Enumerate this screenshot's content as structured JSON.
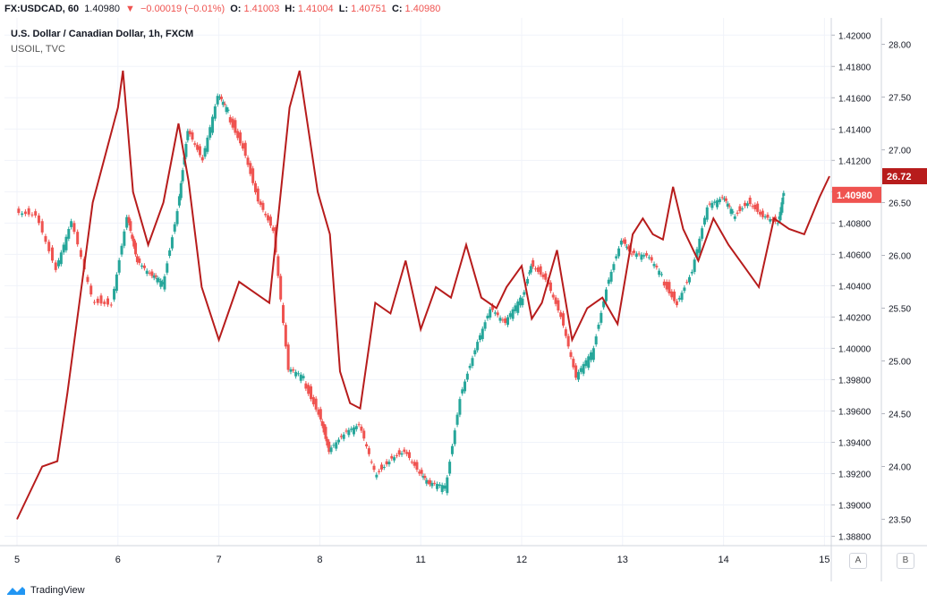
{
  "header": {
    "symbol": "FX:USDCAD, 60",
    "last": "1.40980",
    "change": "−0.00019 (−0.01%)",
    "open_label": "O:",
    "open_value": "1.41003",
    "high_label": "H:",
    "high_value": "1.41004",
    "low_label": "L:",
    "low_value": "1.40751",
    "close_label": "C:",
    "close_value": "1.40980",
    "down_arrow": "▼"
  },
  "legend": {
    "main_title": "U.S. Dollar / Canadian Dollar, 1h, FXCM",
    "overlay_title": "USOIL, TVC"
  },
  "price_badges": {
    "usdcad": "1.40980",
    "usoil": "26.72"
  },
  "axis_buttons": {
    "auto": "A",
    "both": "B"
  },
  "footer": {
    "brand": "TradingView"
  },
  "colors": {
    "up": "#26a69a",
    "down": "#ef5350",
    "oil_line": "#b71c1c",
    "grid": "#f0f3fa",
    "axis_text": "#131722",
    "badge_usdcad": "#ef5350",
    "badge_usoil": "#b71c1c"
  },
  "chart_data": {
    "type": "line",
    "title": "U.S. Dollar / Canadian Dollar, 1h, FXCM",
    "x_ticks": [
      "5",
      "6",
      "7",
      "8",
      "11",
      "12",
      "13",
      "14",
      "15"
    ],
    "left_axis": {
      "label": "USOIL",
      "ticks": [
        "28.00",
        "27.50",
        "27.00",
        "26.50",
        "26.00",
        "25.50",
        "25.00",
        "24.50",
        "24.00",
        "23.50"
      ],
      "ylim": [
        23.25,
        28.25
      ]
    },
    "right_axis": {
      "label": "USDCAD",
      "ticks": [
        "1.42000",
        "1.41800",
        "1.41600",
        "1.41400",
        "1.41200",
        "1.41000",
        "1.40800",
        "1.40600",
        "1.40400",
        "1.40200",
        "1.40000",
        "1.39800",
        "1.39600",
        "1.39400",
        "1.39200",
        "1.39000",
        "1.38800"
      ],
      "ylim": [
        1.3874,
        1.4211
      ]
    },
    "series": [
      {
        "name": "USDCAD",
        "kind": "candlestick",
        "points": [
          {
            "x": 0.0,
            "y": 1.4088
          },
          {
            "x": 0.2,
            "y": 1.4086
          },
          {
            "x": 0.4,
            "y": 1.405
          },
          {
            "x": 0.55,
            "y": 1.408
          },
          {
            "x": 0.75,
            "y": 1.4032
          },
          {
            "x": 0.95,
            "y": 1.403
          },
          {
            "x": 1.1,
            "y": 1.4085
          },
          {
            "x": 1.2,
            "y": 1.4055
          },
          {
            "x": 1.35,
            "y": 1.4045
          },
          {
            "x": 1.45,
            "y": 1.404
          },
          {
            "x": 1.6,
            "y": 1.409
          },
          {
            "x": 1.7,
            "y": 1.414
          },
          {
            "x": 1.85,
            "y": 1.412
          },
          {
            "x": 2.0,
            "y": 1.416
          },
          {
            "x": 2.1,
            "y": 1.415
          },
          {
            "x": 2.25,
            "y": 1.413
          },
          {
            "x": 2.4,
            "y": 1.4095
          },
          {
            "x": 2.55,
            "y": 1.4075
          },
          {
            "x": 2.7,
            "y": 1.3985
          },
          {
            "x": 2.85,
            "y": 1.398
          },
          {
            "x": 3.0,
            "y": 1.396
          },
          {
            "x": 3.1,
            "y": 1.3935
          },
          {
            "x": 3.25,
            "y": 1.3945
          },
          {
            "x": 3.4,
            "y": 1.395
          },
          {
            "x": 3.55,
            "y": 1.392
          },
          {
            "x": 3.7,
            "y": 1.393
          },
          {
            "x": 3.85,
            "y": 1.3935
          },
          {
            "x": 4.0,
            "y": 1.392
          },
          {
            "x": 4.1,
            "y": 1.3912
          },
          {
            "x": 4.25,
            "y": 1.391
          },
          {
            "x": 4.4,
            "y": 1.397
          },
          {
            "x": 4.55,
            "y": 1.4
          },
          {
            "x": 4.7,
            "y": 1.4025
          },
          {
            "x": 4.85,
            "y": 1.4015
          },
          {
            "x": 5.0,
            "y": 1.403
          },
          {
            "x": 5.1,
            "y": 1.4055
          },
          {
            "x": 5.25,
            "y": 1.4045
          },
          {
            "x": 5.4,
            "y": 1.402
          },
          {
            "x": 5.55,
            "y": 1.398
          },
          {
            "x": 5.7,
            "y": 1.3995
          },
          {
            "x": 5.85,
            "y": 1.404
          },
          {
            "x": 6.0,
            "y": 1.407
          },
          {
            "x": 6.1,
            "y": 1.406
          },
          {
            "x": 6.25,
            "y": 1.4058
          },
          {
            "x": 6.4,
            "y": 1.4045
          },
          {
            "x": 6.55,
            "y": 1.403
          },
          {
            "x": 6.7,
            "y": 1.405
          },
          {
            "x": 6.85,
            "y": 1.409
          },
          {
            "x": 7.0,
            "y": 1.4095
          },
          {
            "x": 7.1,
            "y": 1.4085
          },
          {
            "x": 7.25,
            "y": 1.4095
          },
          {
            "x": 7.4,
            "y": 1.4085
          },
          {
            "x": 7.55,
            "y": 1.408
          },
          {
            "x": 7.6,
            "y": 1.4098
          }
        ]
      },
      {
        "name": "USOIL",
        "kind": "line",
        "points": [
          {
            "x": 0.0,
            "y": 23.5
          },
          {
            "x": 0.25,
            "y": 24.0
          },
          {
            "x": 0.4,
            "y": 24.05
          },
          {
            "x": 0.5,
            "y": 24.7
          },
          {
            "x": 0.75,
            "y": 26.5
          },
          {
            "x": 1.0,
            "y": 27.4
          },
          {
            "x": 1.05,
            "y": 27.75
          },
          {
            "x": 1.15,
            "y": 26.6
          },
          {
            "x": 1.3,
            "y": 26.1
          },
          {
            "x": 1.45,
            "y": 26.5
          },
          {
            "x": 1.6,
            "y": 27.25
          },
          {
            "x": 1.7,
            "y": 26.7
          },
          {
            "x": 1.83,
            "y": 25.7
          },
          {
            "x": 2.0,
            "y": 25.2
          },
          {
            "x": 2.2,
            "y": 25.75
          },
          {
            "x": 2.35,
            "y": 25.65
          },
          {
            "x": 2.5,
            "y": 25.55
          },
          {
            "x": 2.7,
            "y": 27.4
          },
          {
            "x": 2.8,
            "y": 27.75
          },
          {
            "x": 2.98,
            "y": 26.6
          },
          {
            "x": 3.1,
            "y": 26.2
          },
          {
            "x": 3.2,
            "y": 24.9
          },
          {
            "x": 3.3,
            "y": 24.6
          },
          {
            "x": 3.4,
            "y": 24.55
          },
          {
            "x": 3.55,
            "y": 25.55
          },
          {
            "x": 3.7,
            "y": 25.45
          },
          {
            "x": 3.85,
            "y": 25.95
          },
          {
            "x": 4.0,
            "y": 25.3
          },
          {
            "x": 4.15,
            "y": 25.7
          },
          {
            "x": 4.3,
            "y": 25.6
          },
          {
            "x": 4.45,
            "y": 26.1
          },
          {
            "x": 4.6,
            "y": 25.6
          },
          {
            "x": 4.75,
            "y": 25.5
          },
          {
            "x": 4.85,
            "y": 25.7
          },
          {
            "x": 5.0,
            "y": 25.9
          },
          {
            "x": 5.1,
            "y": 25.4
          },
          {
            "x": 5.2,
            "y": 25.55
          },
          {
            "x": 5.35,
            "y": 26.05
          },
          {
            "x": 5.5,
            "y": 25.2
          },
          {
            "x": 5.65,
            "y": 25.5
          },
          {
            "x": 5.8,
            "y": 25.6
          },
          {
            "x": 5.95,
            "y": 25.35
          },
          {
            "x": 6.1,
            "y": 26.2
          },
          {
            "x": 6.2,
            "y": 26.35
          },
          {
            "x": 6.3,
            "y": 26.2
          },
          {
            "x": 6.4,
            "y": 26.15
          },
          {
            "x": 6.5,
            "y": 26.65
          },
          {
            "x": 6.6,
            "y": 26.25
          },
          {
            "x": 6.75,
            "y": 25.95
          },
          {
            "x": 6.9,
            "y": 26.35
          },
          {
            "x": 7.05,
            "y": 26.1
          },
          {
            "x": 7.2,
            "y": 25.9
          },
          {
            "x": 7.35,
            "y": 25.7
          },
          {
            "x": 7.5,
            "y": 26.35
          },
          {
            "x": 7.65,
            "y": 26.25
          },
          {
            "x": 7.8,
            "y": 26.2
          },
          {
            "x": 7.95,
            "y": 26.55
          },
          {
            "x": 8.05,
            "y": 26.75
          }
        ]
      }
    ],
    "grid": true,
    "legend_position": "top-left"
  }
}
